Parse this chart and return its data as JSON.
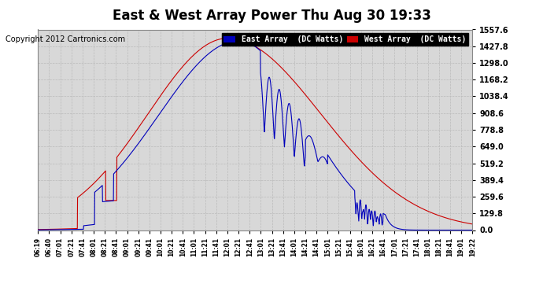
{
  "title": "East & West Array Power Thu Aug 30 19:33",
  "copyright": "Copyright 2012 Cartronics.com",
  "legend_east": "East Array  (DC Watts)",
  "legend_west": "West Array  (DC Watts)",
  "east_color": "#0000bb",
  "west_color": "#cc0000",
  "background_color": "#ffffff",
  "plot_bg_color": "#d8d8d8",
  "grid_color": "#bbbbbb",
  "yticks": [
    0.0,
    129.8,
    259.6,
    389.4,
    519.2,
    649.0,
    778.8,
    908.6,
    1038.4,
    1168.2,
    1298.0,
    1427.8,
    1557.6
  ],
  "ylim": [
    0,
    1557.6
  ],
  "title_fontsize": 12,
  "copyright_fontsize": 7,
  "xtick_labels": [
    "06:19",
    "06:40",
    "07:01",
    "07:21",
    "07:41",
    "08:01",
    "08:21",
    "08:41",
    "09:01",
    "09:21",
    "09:41",
    "10:01",
    "10:21",
    "10:41",
    "11:01",
    "11:21",
    "11:41",
    "12:01",
    "12:21",
    "12:41",
    "13:01",
    "13:21",
    "13:41",
    "14:01",
    "14:21",
    "14:41",
    "15:01",
    "15:21",
    "15:41",
    "16:01",
    "16:21",
    "16:41",
    "17:01",
    "17:21",
    "17:41",
    "18:01",
    "18:21",
    "18:41",
    "19:01",
    "19:22"
  ]
}
